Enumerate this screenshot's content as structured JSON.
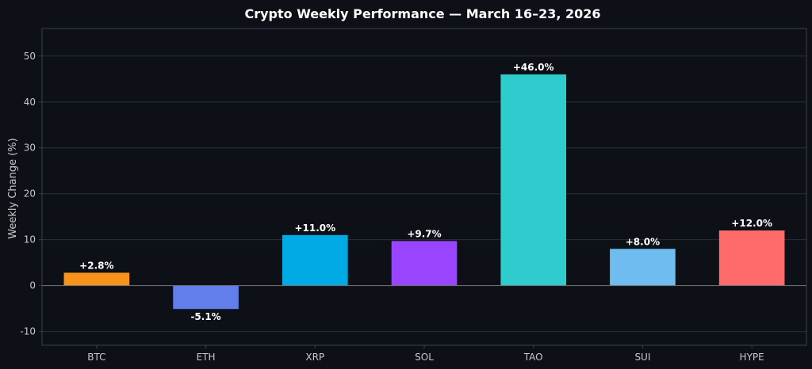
{
  "chart_data": {
    "type": "bar",
    "title": "Crypto Weekly Performance — March 16–23, 2026",
    "xlabel": "",
    "ylabel": "Weekly Change (%)",
    "categories": [
      "BTC",
      "ETH",
      "XRP",
      "SOL",
      "TAO",
      "SUI",
      "HYPE"
    ],
    "values": [
      2.8,
      -5.1,
      11.0,
      9.7,
      46.0,
      8.0,
      12.0
    ],
    "value_labels": [
      "+2.8%",
      "-5.1%",
      "+11.0%",
      "+9.7%",
      "+46.0%",
      "+8.0%",
      "+12.0%"
    ],
    "colors": [
      "#f7931a",
      "#627eea",
      "#00aae4",
      "#9945ff",
      "#2ecccc",
      "#6fbcf0",
      "#ff6b6b"
    ],
    "ylim": [
      -13,
      56
    ],
    "yticks": [
      -10,
      0,
      10,
      20,
      30,
      40,
      50
    ],
    "grid": true,
    "legend": "none"
  },
  "theme": {
    "background": "#0d1017",
    "axis_color": "#3a3f4a",
    "grid_color": "#2a2e38",
    "zero_line_color": "#777777"
  }
}
